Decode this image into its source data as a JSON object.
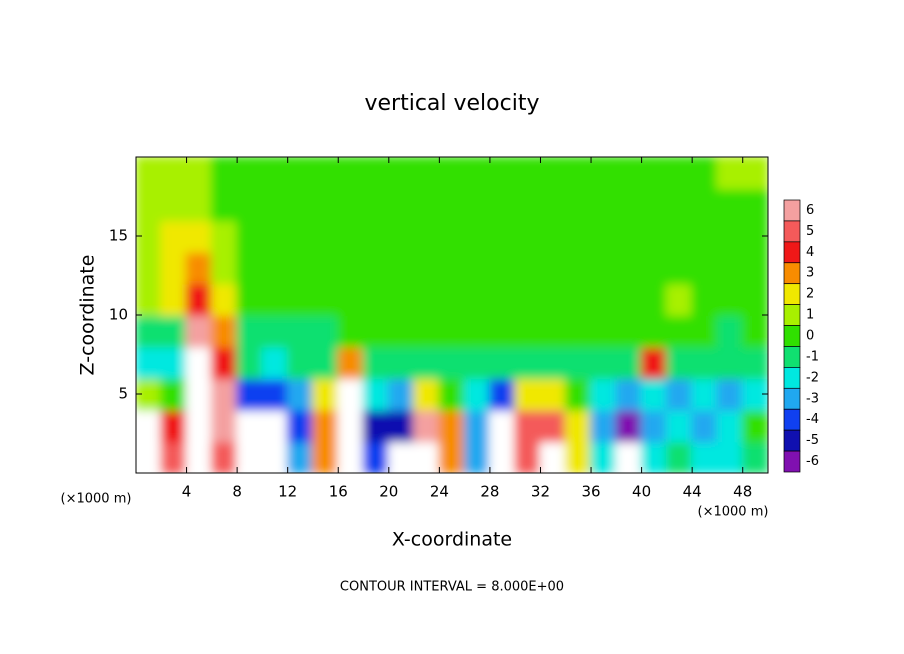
{
  "chart_data": {
    "type": "heatmap",
    "title": "vertical velocity",
    "xlabel": "X-coordinate",
    "ylabel": "Z-coordinate",
    "x_unit": "(×1000 m)",
    "y_unit": "(×1000 m)",
    "footnote": "CONTOUR INTERVAL = 8.000E+00",
    "xlim": [
      0,
      50
    ],
    "ylim": [
      0,
      20
    ],
    "xticks": [
      4,
      8,
      12,
      16,
      20,
      24,
      28,
      32,
      36,
      40,
      44,
      48
    ],
    "yticks": [
      5,
      10,
      15
    ],
    "x": [
      1,
      3,
      5,
      7,
      9,
      11,
      13,
      15,
      17,
      19,
      21,
      23,
      25,
      27,
      29,
      31,
      33,
      35,
      37,
      39,
      41,
      43,
      45,
      47,
      49
    ],
    "y": [
      1,
      3,
      5,
      7,
      9,
      11,
      13,
      15,
      17,
      19
    ],
    "z": [
      [
        8,
        5,
        8,
        5,
        -7,
        -7,
        -3,
        3,
        8,
        -4,
        -7,
        8,
        3,
        -3,
        -7,
        5,
        7,
        2,
        -2,
        -7,
        -2,
        -1,
        -2,
        -2,
        -1
      ],
      [
        8,
        4,
        8,
        6,
        -7,
        -7,
        -4,
        3,
        8,
        -5,
        -5,
        6,
        3,
        -3,
        -7,
        5,
        5,
        2,
        -3,
        -6,
        -3,
        -2,
        -3,
        -2,
        0
      ],
      [
        1,
        0,
        8,
        6,
        -4,
        -4,
        -3,
        2,
        7,
        -2,
        -3,
        2,
        0,
        -2,
        -4,
        2,
        2,
        0,
        -2,
        -3,
        -2,
        -3,
        -2,
        -3,
        -2
      ],
      [
        -2,
        -2,
        8,
        4,
        -1,
        -2,
        -1,
        -1,
        3,
        -1,
        -1,
        -1,
        -1,
        -1,
        -1,
        -1,
        -1,
        -1,
        -1,
        -1,
        4,
        -1,
        -1,
        -1,
        -1
      ],
      [
        -1,
        -1,
        6,
        3,
        -1,
        -1,
        -1,
        -1,
        0,
        0,
        0,
        0,
        0,
        0,
        0,
        0,
        0,
        0,
        0,
        0,
        0,
        0,
        0,
        -1,
        0
      ],
      [
        1,
        2,
        4,
        2,
        0,
        0,
        0,
        0,
        0,
        0,
        0,
        0,
        0,
        0,
        0,
        0,
        0,
        0,
        0,
        0,
        0,
        1,
        0,
        0,
        0
      ],
      [
        1,
        2,
        2.5,
        1,
        0,
        0,
        0,
        0,
        0,
        0,
        0,
        0,
        0,
        0,
        0,
        0,
        0,
        0,
        0,
        0,
        0,
        0,
        0,
        0,
        0
      ],
      [
        1,
        1.5,
        2,
        0.5,
        0,
        0,
        0,
        0,
        0,
        0,
        0,
        0,
        0,
        0,
        0,
        0,
        0,
        0,
        0,
        0,
        0,
        0,
        0,
        0,
        0
      ],
      [
        0.5,
        1,
        1,
        0.3,
        0,
        0,
        0,
        0,
        0,
        0,
        0,
        0,
        0,
        0,
        0,
        0,
        0,
        0,
        0,
        0,
        0,
        0,
        0,
        0,
        0
      ],
      [
        0.5,
        0.5,
        0.5,
        0.2,
        0,
        0,
        0,
        0,
        0,
        0,
        0,
        0,
        0,
        0,
        0,
        0,
        0,
        0,
        0,
        0,
        0,
        0,
        0,
        0.5,
        0.5
      ]
    ],
    "colorbar_ticks": [
      6,
      5,
      4,
      3,
      2,
      1,
      0,
      -1,
      -2,
      -3,
      -4,
      -5,
      -6
    ],
    "colorbar_colors": [
      "#f4a0a0",
      "#f45a5a",
      "#f01818",
      "#f88c00",
      "#f0e800",
      "#a8f000",
      "#30e000",
      "#10e070",
      "#00e8e0",
      "#20a8f0",
      "#1040f0",
      "#1010b0",
      "#8010b0"
    ],
    "out_of_range_color": "#ffffff"
  }
}
